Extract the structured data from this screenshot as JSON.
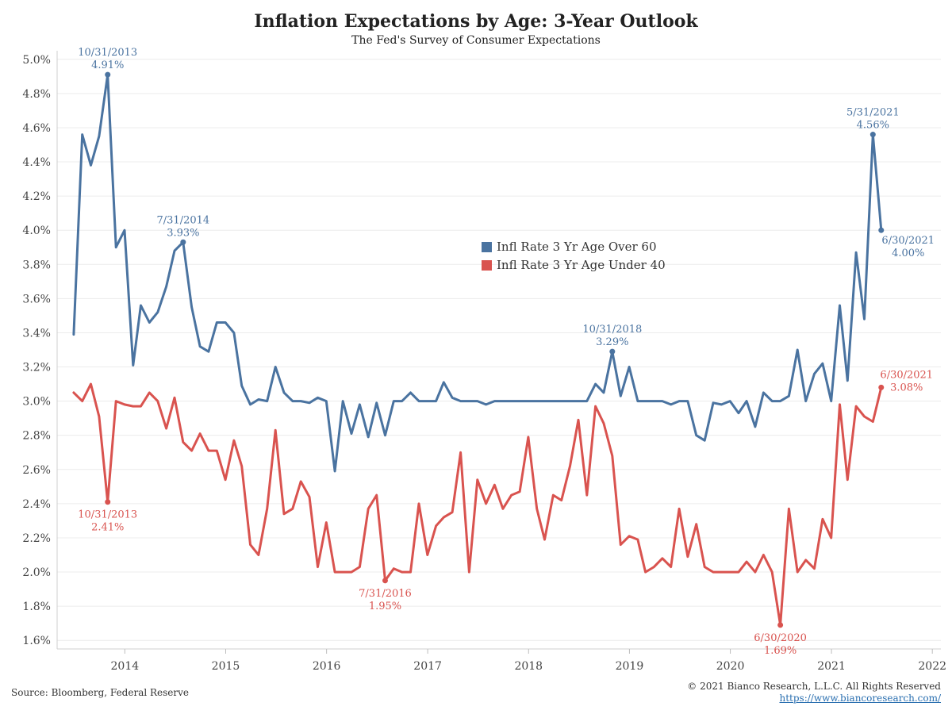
{
  "header": {
    "title": "Inflation Expectations by Age: 3-Year Outlook",
    "subtitle": "The Fed's Survey of Consumer Expectations"
  },
  "footer": {
    "source": "Source: Bloomberg, Federal Reserve",
    "copyright": "© 2021 Bianco Research, L.L.C. All Rights Reserved",
    "url": "https://www.biancoresearch.com/"
  },
  "chart_data": {
    "type": "line",
    "title": "Inflation Expectations by Age: 3-Year Outlook",
    "subtitle": "The Fed's Survey of Consumer Expectations",
    "xlabel": "",
    "ylabel": "",
    "xlim": [
      "2013-05-01",
      "2022-02-01"
    ],
    "ylim": [
      1.55,
      5.05
    ],
    "y_ticks": [
      1.6,
      1.8,
      2.0,
      2.2,
      2.4,
      2.6,
      2.8,
      3.0,
      3.2,
      3.4,
      3.6,
      3.8,
      4.0,
      4.2,
      4.4,
      4.6,
      4.8,
      5.0
    ],
    "y_tick_labels": [
      "1.6%",
      "1.8%",
      "2.0%",
      "2.2%",
      "2.4%",
      "2.6%",
      "2.8%",
      "3.0%",
      "3.2%",
      "3.4%",
      "3.6%",
      "3.8%",
      "4.0%",
      "4.2%",
      "4.4%",
      "4.6%",
      "4.8%",
      "5.0%"
    ],
    "x_ticks": [
      "2014",
      "2015",
      "2016",
      "2017",
      "2018",
      "2019",
      "2020",
      "2021",
      "2022"
    ],
    "grid": "horizontal",
    "legend_position": "center",
    "start_month": "2013-06",
    "series": [
      {
        "name": "Infl Rate 3 Yr Age Over 60",
        "color": "#4a73a0",
        "values": [
          3.39,
          4.56,
          4.38,
          4.55,
          4.91,
          3.9,
          4.0,
          3.21,
          3.56,
          3.46,
          3.52,
          3.67,
          3.88,
          3.93,
          3.55,
          3.32,
          3.29,
          3.46,
          3.46,
          3.4,
          3.09,
          2.98,
          3.01,
          3.0,
          3.2,
          3.05,
          3.0,
          3.0,
          2.99,
          3.02,
          3.0,
          2.59,
          3.0,
          2.81,
          2.98,
          2.79,
          2.99,
          2.8,
          3.0,
          3.0,
          3.05,
          3.0,
          3.0,
          3.0,
          3.11,
          3.02,
          3.0,
          3.0,
          3.0,
          2.98,
          3.0,
          3.0,
          3.0,
          3.0,
          3.0,
          3.0,
          3.0,
          3.0,
          3.0,
          3.0,
          3.0,
          3.0,
          3.1,
          3.05,
          3.29,
          3.03,
          3.2,
          3.0,
          3.0,
          3.0,
          3.0,
          2.98,
          3.0,
          3.0,
          2.8,
          2.77,
          2.99,
          2.98,
          3.0,
          2.93,
          3.0,
          2.85,
          3.05,
          3.0,
          3.0,
          3.03,
          3.3,
          3.0,
          3.16,
          3.22,
          3.0,
          3.56,
          3.12,
          3.87,
          3.48,
          4.56,
          4.0
        ]
      },
      {
        "name": "Infl Rate 3 Yr Age Under 40",
        "color": "#d9534f",
        "values": [
          3.05,
          3.0,
          3.1,
          2.91,
          2.41,
          3.0,
          2.98,
          2.97,
          2.97,
          3.05,
          3.0,
          2.84,
          3.02,
          2.76,
          2.71,
          2.81,
          2.71,
          2.71,
          2.54,
          2.77,
          2.62,
          2.16,
          2.1,
          2.37,
          2.83,
          2.34,
          2.37,
          2.53,
          2.44,
          2.03,
          2.29,
          2.0,
          2.0,
          2.0,
          2.03,
          2.37,
          2.45,
          1.95,
          2.02,
          2.0,
          2.0,
          2.4,
          2.1,
          2.27,
          2.32,
          2.35,
          2.7,
          2.0,
          2.54,
          2.4,
          2.51,
          2.37,
          2.45,
          2.47,
          2.79,
          2.37,
          2.19,
          2.45,
          2.42,
          2.62,
          2.89,
          2.45,
          2.97,
          2.87,
          2.68,
          2.16,
          2.21,
          2.19,
          2.0,
          2.03,
          2.08,
          2.03,
          2.37,
          2.09,
          2.28,
          2.03,
          2.0,
          2.0,
          2.0,
          2.0,
          2.06,
          2.0,
          2.1,
          2.0,
          1.69,
          2.37,
          2.0,
          2.07,
          2.02,
          2.31,
          2.2,
          2.98,
          2.54,
          2.97,
          2.91,
          2.88,
          3.08
        ]
      }
    ],
    "annotations": [
      {
        "series": 0,
        "index": 4,
        "label": "10/31/2013",
        "value": "4.91%",
        "position": "above"
      },
      {
        "series": 0,
        "index": 13,
        "label": "7/31/2014",
        "value": "3.93%",
        "position": "above"
      },
      {
        "series": 0,
        "index": 64,
        "label": "10/31/2018",
        "value": "3.29%",
        "position": "above"
      },
      {
        "series": 0,
        "index": 95,
        "label": "5/31/2021",
        "value": "4.56%",
        "position": "above"
      },
      {
        "series": 0,
        "index": 96,
        "label": "6/30/2021",
        "value": "4.00%",
        "position": "below-right"
      },
      {
        "series": 1,
        "index": 4,
        "label": "10/31/2013",
        "value": "2.41%",
        "position": "below"
      },
      {
        "series": 1,
        "index": 37,
        "label": "7/31/2016",
        "value": "1.95%",
        "position": "below"
      },
      {
        "series": 1,
        "index": 84,
        "label": "6/30/2020",
        "value": "1.69%",
        "position": "below"
      },
      {
        "series": 1,
        "index": 96,
        "label": "6/30/2021",
        "value": "3.08%",
        "position": "above-right"
      }
    ]
  }
}
